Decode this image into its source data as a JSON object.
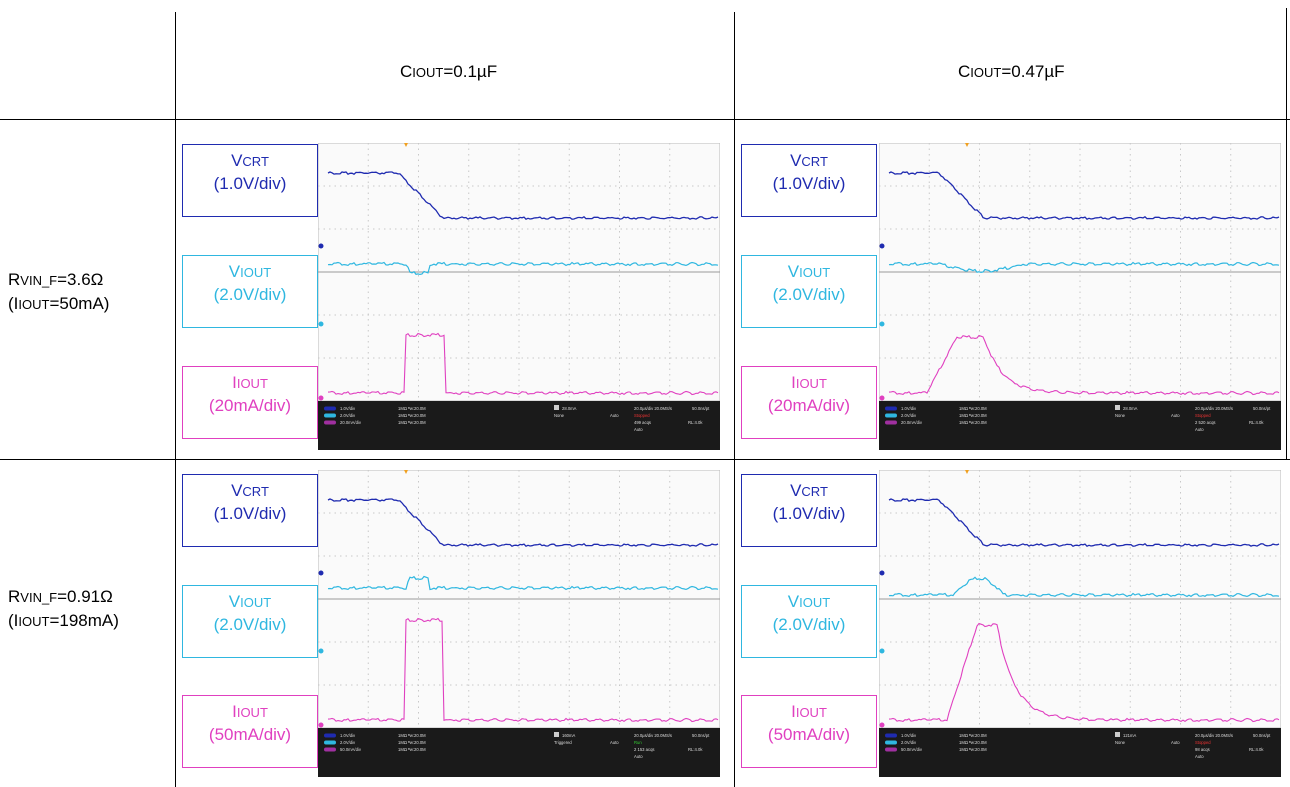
{
  "header": {
    "col1": {
      "main": "C",
      "sub": "IOUT",
      "rest": "=0.1µF"
    },
    "col2": {
      "main": "C",
      "sub": "IOUT",
      "rest": "=0.47µF"
    }
  },
  "rows": [
    {
      "line1": {
        "main": "R",
        "sub": "VIN_F",
        "rest": "=3.6Ω"
      },
      "line2": {
        "pre": "(I",
        "sub": "IOUT",
        "rest": "=50mA)"
      }
    },
    {
      "line1": {
        "main": "R",
        "sub": "VIN_F",
        "rest": "=0.91Ω"
      },
      "line2": {
        "pre": "(I",
        "sub": "IOUT",
        "rest": "=198mA)"
      }
    }
  ],
  "labels": {
    "vcrt": {
      "main": "V",
      "sub": "CRT",
      "scale": "(1.0V/div)"
    },
    "viout": {
      "main": "V",
      "sub": "IOUT",
      "scale": "(2.0V/div)"
    },
    "iiout_r1": {
      "main": "I",
      "sub": "IOUT",
      "scale": "(20mA/div)"
    },
    "iiout_r2": {
      "main": "I",
      "sub": "IOUT",
      "scale": "(50mA/div)"
    }
  },
  "scope_text": {
    "ch1": "1.0V/div",
    "ch2": "2.0V/div",
    "ch3_r1": "20.0mA/div",
    "ch3_r2": "50.0mA/div",
    "imp": "1MΩ ᴮw:20.0M",
    "trig_r1": "28.0mA",
    "trig_r2c1": "160mA",
    "trig_r2c2": "121mA",
    "timebase": "20.0µs/div  20.0MS/s",
    "ptres": "50.0ns/pt",
    "mode_none": "None",
    "mode_trig": "Triggered",
    "auto": "Auto",
    "stopped": "Stopped",
    "run": "Run",
    "sample": "Sample",
    "acqs_a": "499 acqs",
    "acqs_b": "2 520 acqs",
    "acqs_c": "2 153 acqs",
    "acqs_d": "98 acqs",
    "rl": "RL:4.0k"
  },
  "colors": {
    "vcrt": "#1f2bb0",
    "viout": "#2fb7e0",
    "iiout": "#e040c0",
    "scope_bar": "#1a1a1a"
  }
}
